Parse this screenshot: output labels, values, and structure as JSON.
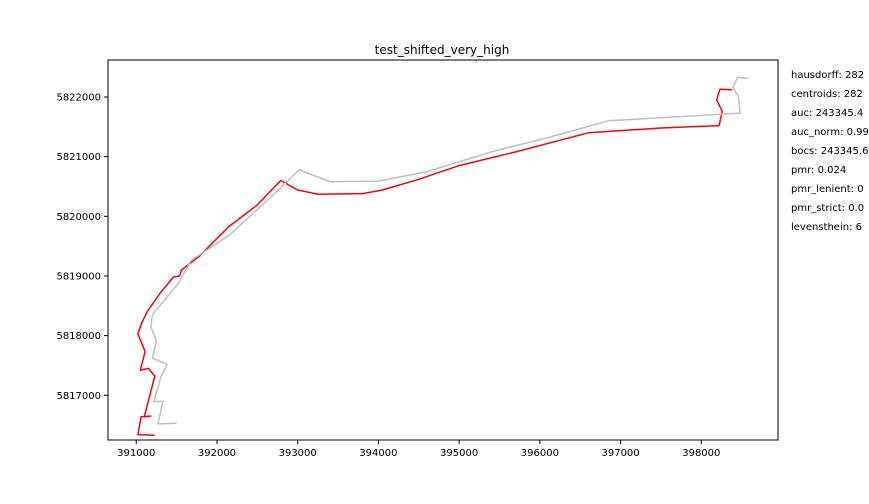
{
  "chart_data": {
    "type": "line",
    "title": "test_shifted_very_high",
    "xlabel": "",
    "ylabel": "",
    "xlim": [
      390650,
      398950
    ],
    "ylim": [
      5816250,
      5822620
    ],
    "x_ticks": [
      391000,
      392000,
      393000,
      394000,
      395000,
      396000,
      397000,
      398000
    ],
    "y_ticks": [
      5817000,
      5818000,
      5819000,
      5820000,
      5821000,
      5822000
    ],
    "grid": false,
    "series": [
      {
        "color": "#ff0000",
        "points": [
          [
            391230,
            5816330
          ],
          [
            391020,
            5816340
          ],
          [
            391060,
            5816640
          ],
          [
            391180,
            5816650
          ],
          [
            391100,
            5816640
          ],
          [
            391230,
            5817320
          ],
          [
            391150,
            5817450
          ],
          [
            391050,
            5817420
          ],
          [
            391110,
            5817730
          ],
          [
            391020,
            5818030
          ],
          [
            391070,
            5818220
          ],
          [
            391140,
            5818410
          ],
          [
            391300,
            5818720
          ],
          [
            391460,
            5818980
          ],
          [
            391540,
            5819000
          ],
          [
            391560,
            5819100
          ],
          [
            391780,
            5819330
          ],
          [
            392150,
            5819830
          ],
          [
            392500,
            5820190
          ],
          [
            392790,
            5820600
          ],
          [
            393000,
            5820440
          ],
          [
            393250,
            5820370
          ],
          [
            393800,
            5820380
          ],
          [
            394050,
            5820440
          ],
          [
            394500,
            5820620
          ],
          [
            395000,
            5820850
          ],
          [
            395700,
            5821080
          ],
          [
            396600,
            5821400
          ],
          [
            397500,
            5821480
          ],
          [
            398220,
            5821520
          ],
          [
            398260,
            5821760
          ],
          [
            398190,
            5821950
          ],
          [
            398230,
            5822130
          ],
          [
            398380,
            5822120
          ]
        ]
      },
      {
        "color": "#bfbfbf",
        "points": [
          [
            391500,
            5816530
          ],
          [
            391270,
            5816520
          ],
          [
            391330,
            5816900
          ],
          [
            391220,
            5816890
          ],
          [
            391300,
            5817290
          ],
          [
            391380,
            5817520
          ],
          [
            391200,
            5817620
          ],
          [
            391250,
            5817920
          ],
          [
            391180,
            5818150
          ],
          [
            391200,
            5818350
          ],
          [
            391520,
            5818870
          ],
          [
            391680,
            5819260
          ],
          [
            392150,
            5819680
          ],
          [
            392650,
            5820300
          ],
          [
            393020,
            5820780
          ],
          [
            393400,
            5820580
          ],
          [
            394000,
            5820590
          ],
          [
            394600,
            5820750
          ],
          [
            395400,
            5821080
          ],
          [
            396100,
            5821320
          ],
          [
            396850,
            5821600
          ],
          [
            398480,
            5821730
          ],
          [
            398460,
            5822020
          ],
          [
            398390,
            5822150
          ],
          [
            398450,
            5822330
          ],
          [
            398580,
            5822310
          ]
        ]
      }
    ]
  },
  "metrics": [
    "hausdorff: 282",
    "centroids: 282",
    "auc: 243345.4",
    "auc_norm: 0.99",
    "bocs: 243345.6",
    "pmr: 0.024",
    "pmr_lenient: 0",
    "pmr_strict: 0.0",
    "levensthein: 6"
  ]
}
